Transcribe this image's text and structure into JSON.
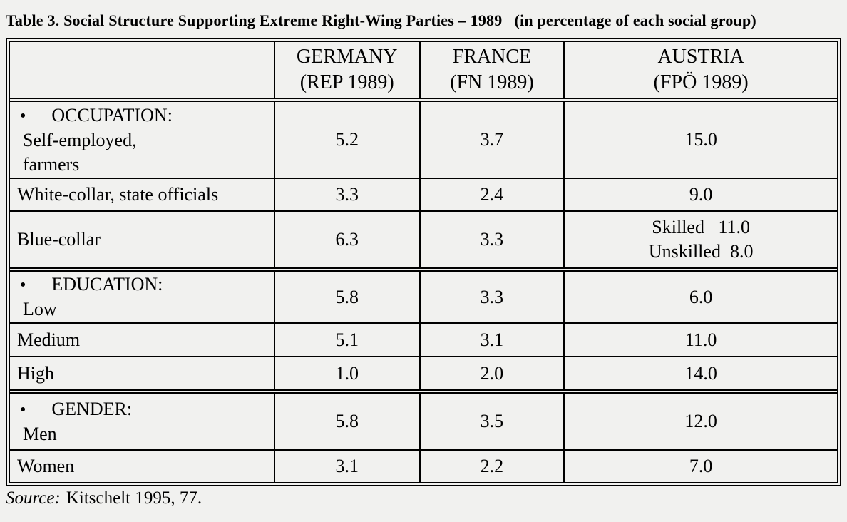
{
  "colors": {
    "background": "#f1f1ef",
    "text": "#000000",
    "border": "#000000"
  },
  "title": "Table 3. Social Structure Supporting Extreme Right-Wing Parties – 1989   (in percentage of each social group)",
  "header": {
    "germany": {
      "line1": "GERMANY",
      "line2": "(REP 1989)"
    },
    "france": {
      "line1": "FRANCE",
      "line2": "(FN 1989)"
    },
    "austria": {
      "line1": "AUSTRIA",
      "line2": "(FPÖ 1989)"
    }
  },
  "rows": {
    "occupation": {
      "bullet": "•",
      "section_title": "OCCUPATION:",
      "label2": "Self-employed,",
      "label3": "farmers",
      "germany": "5.2",
      "france": "3.7",
      "austria": "15.0"
    },
    "white_collar": {
      "label": "White-collar, state officials",
      "germany": "3.3",
      "france": "2.4",
      "austria": "9.0"
    },
    "blue_collar": {
      "label": "Blue-collar",
      "germany": "6.3",
      "france": "3.3",
      "austria_line1": "Skilled   11.0",
      "austria_line2": "Unskilled  8.0"
    },
    "education_low": {
      "bullet": "•",
      "section_title": "EDUCATION:",
      "label2": "Low",
      "germany": "5.8",
      "france": "3.3",
      "austria": "6.0"
    },
    "education_medium": {
      "label": "Medium",
      "germany": "5.1",
      "france": "3.1",
      "austria": "11.0"
    },
    "education_high": {
      "label": "High",
      "germany": "1.0",
      "france": "2.0",
      "austria": "14.0"
    },
    "gender_men": {
      "bullet": "•",
      "section_title": "GENDER:",
      "label2": "Men",
      "germany": "5.8",
      "france": "3.5",
      "austria": "12.0"
    },
    "gender_women": {
      "label": "Women",
      "germany": "3.1",
      "france": "2.2",
      "austria": "7.0"
    }
  },
  "source": {
    "label": "Source:",
    "text": "Kitschelt 1995, 77."
  }
}
